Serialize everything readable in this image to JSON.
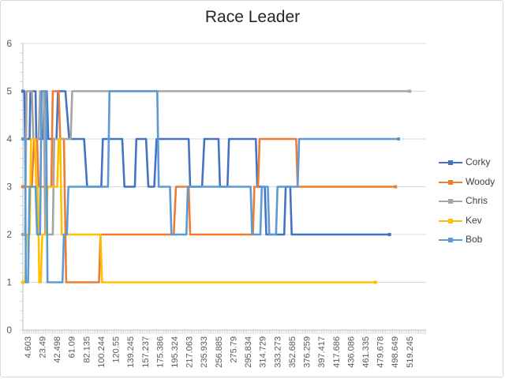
{
  "chart_data": {
    "type": "line",
    "title": "Race Leader",
    "xlabel": "",
    "ylabel": "",
    "ylim": [
      0,
      6
    ],
    "yticks": [
      0,
      1,
      2,
      3,
      4,
      5,
      6
    ],
    "x_tick_labels": [
      "4.603",
      "23.49",
      "42.498",
      "61.09",
      "82.135",
      "100.244",
      "120.55",
      "139.245",
      "157.237",
      "175.386",
      "195.324",
      "217.063",
      "235.933",
      "256.885",
      "275.79",
      "295.834",
      "314.729",
      "333.273",
      "352.685",
      "376.259",
      "397.417",
      "417.686",
      "436.086",
      "461.335",
      "479.678",
      "498.649",
      "519.245"
    ],
    "x_range": [
      0,
      540
    ],
    "gridlines": "horizontal",
    "legend_position": "right",
    "series": [
      {
        "name": "Corky",
        "color": "#4472c4",
        "points": [
          [
            0,
            5
          ],
          [
            2,
            5
          ],
          [
            3,
            4
          ],
          [
            9,
            4
          ],
          [
            10,
            5
          ],
          [
            17,
            5
          ],
          [
            18,
            4
          ],
          [
            27,
            4
          ],
          [
            29,
            5
          ],
          [
            32,
            5
          ],
          [
            34,
            4
          ],
          [
            45,
            4
          ],
          [
            47,
            5
          ],
          [
            57,
            5
          ],
          [
            62,
            4
          ],
          [
            82,
            4
          ],
          [
            86,
            3
          ],
          [
            105,
            3
          ],
          [
            107,
            4
          ],
          [
            133,
            4
          ],
          [
            136,
            3
          ],
          [
            150,
            3
          ],
          [
            152,
            4
          ],
          [
            165,
            4
          ],
          [
            168,
            3
          ],
          [
            176,
            3
          ],
          [
            179,
            4
          ],
          [
            222,
            4
          ],
          [
            224,
            3
          ],
          [
            240,
            3
          ],
          [
            243,
            4
          ],
          [
            262,
            4
          ],
          [
            264,
            3
          ],
          [
            274,
            3
          ],
          [
            276,
            4
          ],
          [
            312,
            4
          ],
          [
            314,
            3
          ],
          [
            324,
            3
          ],
          [
            326,
            2
          ],
          [
            350,
            2
          ],
          [
            352,
            3
          ],
          [
            358,
            3
          ],
          [
            360,
            2
          ],
          [
            491,
            2
          ]
        ]
      },
      {
        "name": "Woody",
        "color": "#ed7d31",
        "points": [
          [
            0,
            3
          ],
          [
            12,
            3
          ],
          [
            15,
            4
          ],
          [
            19,
            4
          ],
          [
            21,
            3
          ],
          [
            38,
            3
          ],
          [
            40,
            5
          ],
          [
            48,
            5
          ],
          [
            50,
            4
          ],
          [
            55,
            4
          ],
          [
            58,
            1
          ],
          [
            102,
            1
          ],
          [
            104,
            2
          ],
          [
            202,
            2
          ],
          [
            205,
            3
          ],
          [
            222,
            3
          ],
          [
            224,
            2
          ],
          [
            308,
            2
          ],
          [
            310,
            3
          ],
          [
            315,
            3
          ],
          [
            317,
            4
          ],
          [
            366,
            4
          ],
          [
            368,
            3
          ],
          [
            499,
            3
          ]
        ]
      },
      {
        "name": "Chris",
        "color": "#a5a5a5",
        "points": [
          [
            0,
            2
          ],
          [
            3,
            2
          ],
          [
            5,
            5
          ],
          [
            12,
            5
          ],
          [
            14,
            4
          ],
          [
            21,
            4
          ],
          [
            23,
            5
          ],
          [
            28,
            5
          ],
          [
            30,
            2
          ],
          [
            40,
            2
          ],
          [
            42,
            4
          ],
          [
            64,
            4
          ],
          [
            66,
            5
          ],
          [
            518,
            5
          ]
        ]
      },
      {
        "name": "Kev",
        "color": "#ffc000",
        "points": [
          [
            0,
            1
          ],
          [
            3,
            1
          ],
          [
            5,
            2
          ],
          [
            9,
            2
          ],
          [
            11,
            4
          ],
          [
            16,
            4
          ],
          [
            18,
            3
          ],
          [
            20,
            3
          ],
          [
            22,
            1
          ],
          [
            24,
            1
          ],
          [
            26,
            2
          ],
          [
            31,
            2
          ],
          [
            33,
            3
          ],
          [
            46,
            3
          ],
          [
            48,
            4
          ],
          [
            50,
            4
          ],
          [
            52,
            2
          ],
          [
            104,
            2
          ],
          [
            106,
            1
          ],
          [
            472,
            1
          ]
        ]
      },
      {
        "name": "Bob",
        "color": "#5b9bd5",
        "points": [
          [
            0,
            4
          ],
          [
            3,
            4
          ],
          [
            4,
            1
          ],
          [
            7,
            1
          ],
          [
            9,
            3
          ],
          [
            17,
            3
          ],
          [
            19,
            2
          ],
          [
            23,
            2
          ],
          [
            25,
            5
          ],
          [
            31,
            5
          ],
          [
            33,
            1
          ],
          [
            53,
            1
          ],
          [
            55,
            2
          ],
          [
            59,
            2
          ],
          [
            61,
            3
          ],
          [
            114,
            3
          ],
          [
            116,
            5
          ],
          [
            180,
            5
          ],
          [
            182,
            3
          ],
          [
            197,
            3
          ],
          [
            199,
            2
          ],
          [
            219,
            2
          ],
          [
            221,
            3
          ],
          [
            305,
            3
          ],
          [
            307,
            2
          ],
          [
            318,
            2
          ],
          [
            320,
            3
          ],
          [
            328,
            3
          ],
          [
            330,
            2
          ],
          [
            339,
            2
          ],
          [
            341,
            3
          ],
          [
            368,
            3
          ],
          [
            370,
            4
          ],
          [
            503,
            4
          ]
        ]
      }
    ]
  }
}
